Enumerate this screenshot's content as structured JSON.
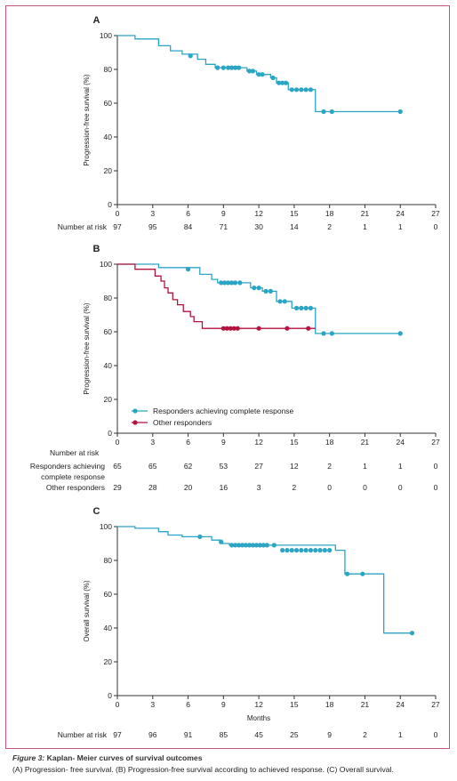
{
  "caption": {
    "title_prefix": "Figure 3:",
    "title_rest": " Kaplan- Meier curves of survival outcomes",
    "text": "(A) Progression- free survival. (B) Progression-free survival according to achieved response. (C) Overall survival."
  },
  "colors": {
    "teal": "#2aa5c4",
    "crimson": "#b3123f",
    "frame": "#c4557a",
    "axis": "#333333"
  },
  "chart_data": [
    {
      "type": "line",
      "step": true,
      "panel": "A",
      "ylabel": "Progression-free survival (%)",
      "xlabel": "",
      "xlim": [
        0,
        27
      ],
      "ylim": [
        0,
        100
      ],
      "xticks": [
        0,
        3,
        6,
        9,
        12,
        15,
        18,
        21,
        24,
        27
      ],
      "yticks": [
        0,
        20,
        40,
        60,
        80,
        100
      ],
      "series": [
        {
          "color": "#2aa5c4",
          "steps": [
            [
              0,
              100
            ],
            [
              1.5,
              98
            ],
            [
              3.5,
              94
            ],
            [
              4.5,
              91
            ],
            [
              5.5,
              89
            ],
            [
              6.8,
              86
            ],
            [
              7.5,
              83
            ],
            [
              8.3,
              81
            ],
            [
              11,
              79
            ],
            [
              11.8,
              77
            ],
            [
              13,
              75
            ],
            [
              13.5,
              72
            ],
            [
              14.5,
              68
            ],
            [
              16.8,
              55
            ],
            [
              24,
              55
            ]
          ],
          "censored": [
            [
              6.2,
              88
            ],
            [
              8.5,
              81
            ],
            [
              9,
              81
            ],
            [
              9.4,
              81
            ],
            [
              9.7,
              81
            ],
            [
              10,
              81
            ],
            [
              10.3,
              81
            ],
            [
              11.2,
              79
            ],
            [
              11.5,
              79
            ],
            [
              12,
              77
            ],
            [
              12.3,
              77
            ],
            [
              13.2,
              75
            ],
            [
              13.7,
              72
            ],
            [
              14,
              72
            ],
            [
              14.3,
              72
            ],
            [
              14.8,
              68
            ],
            [
              15.2,
              68
            ],
            [
              15.6,
              68
            ],
            [
              16,
              68
            ],
            [
              16.4,
              68
            ],
            [
              17.5,
              55
            ],
            [
              18.2,
              55
            ],
            [
              24,
              55
            ]
          ]
        }
      ],
      "risk_table": {
        "title": "",
        "rows": [
          {
            "label": "Number at risk",
            "values": [
              "97",
              "95",
              "84",
              "71",
              "30",
              "14",
              "2",
              "1",
              "1",
              "0"
            ]
          }
        ]
      }
    },
    {
      "type": "line",
      "step": true,
      "panel": "B",
      "ylabel": "Progression-free survival (%)",
      "xlabel": "",
      "xlim": [
        0,
        27
      ],
      "ylim": [
        0,
        100
      ],
      "xticks": [
        0,
        3,
        6,
        9,
        12,
        15,
        18,
        21,
        24,
        27
      ],
      "yticks": [
        0,
        20,
        40,
        60,
        80,
        100
      ],
      "legend": "bottom-left",
      "series": [
        {
          "name": "Responders achieving complete response",
          "color": "#2aa5c4",
          "steps": [
            [
              0,
              100
            ],
            [
              3.5,
              98
            ],
            [
              7,
              94
            ],
            [
              8,
              91
            ],
            [
              8.5,
              89
            ],
            [
              11.3,
              86
            ],
            [
              12.3,
              84
            ],
            [
              13.5,
              78
            ],
            [
              14.8,
              74
            ],
            [
              16.8,
              59
            ],
            [
              24,
              59
            ]
          ],
          "censored": [
            [
              6,
              97
            ],
            [
              8.8,
              89
            ],
            [
              9.1,
              89
            ],
            [
              9.4,
              89
            ],
            [
              9.7,
              89
            ],
            [
              10,
              89
            ],
            [
              10.4,
              89
            ],
            [
              11.6,
              86
            ],
            [
              12,
              86
            ],
            [
              12.6,
              84
            ],
            [
              13,
              84
            ],
            [
              13.8,
              78
            ],
            [
              14.2,
              78
            ],
            [
              15.2,
              74
            ],
            [
              15.6,
              74
            ],
            [
              16,
              74
            ],
            [
              16.4,
              74
            ],
            [
              17.5,
              59
            ],
            [
              18.2,
              59
            ],
            [
              24,
              59
            ]
          ]
        },
        {
          "name": "Other responders",
          "color": "#b3123f",
          "steps": [
            [
              0,
              100
            ],
            [
              1.5,
              97
            ],
            [
              3.2,
              93
            ],
            [
              3.7,
              90
            ],
            [
              4,
              86
            ],
            [
              4.3,
              83
            ],
            [
              4.7,
              79
            ],
            [
              5.1,
              76
            ],
            [
              5.6,
              72
            ],
            [
              6.2,
              69
            ],
            [
              6.5,
              66
            ],
            [
              7.2,
              62
            ],
            [
              16.8,
              62
            ]
          ],
          "censored": [
            [
              9,
              62
            ],
            [
              9.3,
              62
            ],
            [
              9.6,
              62
            ],
            [
              9.9,
              62
            ],
            [
              10.2,
              62
            ],
            [
              12,
              62
            ],
            [
              14.4,
              62
            ],
            [
              16.2,
              62
            ]
          ]
        }
      ],
      "risk_table": {
        "title": "Number at risk",
        "rows": [
          {
            "label": "Responders achieving",
            "label2": "complete response",
            "values": [
              "65",
              "65",
              "62",
              "53",
              "27",
              "12",
              "2",
              "1",
              "1",
              "0"
            ]
          },
          {
            "label": "Other responders",
            "values": [
              "29",
              "28",
              "20",
              "16",
              "3",
              "2",
              "0",
              "0",
              "0",
              "0"
            ]
          }
        ]
      }
    },
    {
      "type": "line",
      "step": true,
      "panel": "C",
      "ylabel": "Overall survival (%)",
      "xlabel": "Months",
      "xlim": [
        0,
        27
      ],
      "ylim": [
        0,
        100
      ],
      "xticks": [
        0,
        3,
        6,
        9,
        12,
        15,
        18,
        21,
        24,
        27
      ],
      "yticks": [
        0,
        20,
        40,
        60,
        80,
        100
      ],
      "series": [
        {
          "color": "#2aa5c4",
          "steps": [
            [
              0,
              100
            ],
            [
              1.5,
              99
            ],
            [
              3.5,
              97
            ],
            [
              4.3,
              95
            ],
            [
              5.5,
              94
            ],
            [
              8,
              92
            ],
            [
              8.7,
              90
            ],
            [
              9.5,
              89
            ],
            [
              18.5,
              86
            ],
            [
              19.3,
              72
            ],
            [
              22.6,
              37
            ],
            [
              25,
              37
            ]
          ],
          "censored": [
            [
              7,
              94
            ],
            [
              8.8,
              91
            ],
            [
              9.7,
              89
            ],
            [
              10,
              89
            ],
            [
              10.3,
              89
            ],
            [
              10.6,
              89
            ],
            [
              10.9,
              89
            ],
            [
              11.2,
              89
            ],
            [
              11.5,
              89
            ],
            [
              11.8,
              89
            ],
            [
              12.1,
              89
            ],
            [
              12.4,
              89
            ],
            [
              12.7,
              89
            ],
            [
              13.3,
              89
            ],
            [
              14,
              86
            ],
            [
              14.4,
              86
            ],
            [
              14.8,
              86
            ],
            [
              15.2,
              86
            ],
            [
              15.6,
              86
            ],
            [
              16,
              86
            ],
            [
              16.4,
              86
            ],
            [
              16.8,
              86
            ],
            [
              17.2,
              86
            ],
            [
              17.6,
              86
            ],
            [
              18,
              86
            ],
            [
              19.5,
              72
            ],
            [
              20.8,
              72
            ],
            [
              25,
              37
            ]
          ]
        }
      ],
      "risk_table": {
        "title": "",
        "rows": [
          {
            "label": "Number at risk",
            "values": [
              "97",
              "96",
              "91",
              "85",
              "45",
              "25",
              "9",
              "2",
              "1",
              "0"
            ]
          }
        ]
      }
    }
  ]
}
